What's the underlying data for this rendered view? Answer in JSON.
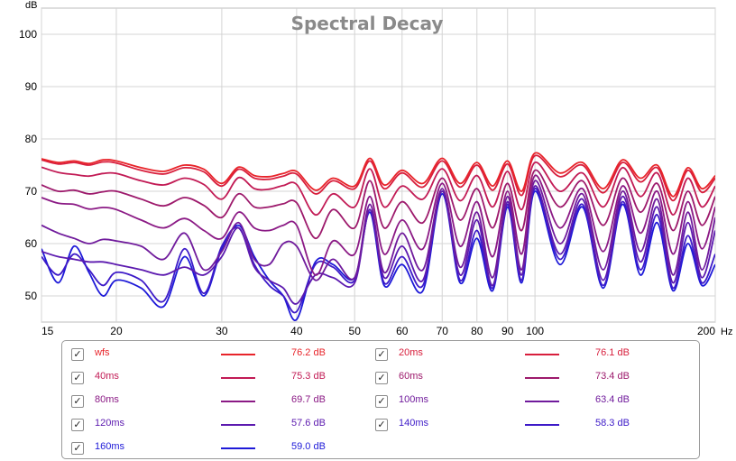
{
  "chart_data": {
    "type": "line",
    "title": "Spectral Decay",
    "ylabel": "dB",
    "xunit": "Hz",
    "xscale": "log",
    "xlim": [
      15,
      200
    ],
    "ylim": [
      45,
      105
    ],
    "xticks": [
      15,
      20,
      30,
      40,
      50,
      60,
      70,
      80,
      90,
      100,
      200
    ],
    "yticks": [
      50,
      60,
      70,
      80,
      90,
      100
    ],
    "grid": true,
    "x": [
      15,
      16,
      17,
      18,
      19,
      20,
      22,
      24,
      26,
      28,
      30,
      32,
      34,
      36,
      38,
      40,
      43,
      46,
      50,
      53,
      56,
      60,
      65,
      70,
      75,
      80,
      85,
      90,
      95,
      100,
      110,
      120,
      130,
      140,
      150,
      160,
      170,
      180,
      190,
      200
    ],
    "series": [
      {
        "name": "wfs",
        "label_value": "76.2 dB",
        "color": "#e8242a",
        "values": [
          76.2,
          75.5,
          75.8,
          75.3,
          76.0,
          75.8,
          74.5,
          73.8,
          75.0,
          74.2,
          71.5,
          74.6,
          73.0,
          72.8,
          73.4,
          73.8,
          70.2,
          72.5,
          71.0,
          76.3,
          71.2,
          74.0,
          71.5,
          76.3,
          71.5,
          75.5,
          71.0,
          75.8,
          70.0,
          77.3,
          73.5,
          75.5,
          70.5,
          76.0,
          72.5,
          75.0,
          69.0,
          74.5,
          70.5,
          73.0
        ]
      },
      {
        "name": "20ms",
        "label_value": "76.1 dB",
        "color": "#d81e3c",
        "values": [
          76.0,
          75.2,
          75.5,
          75.0,
          75.6,
          75.4,
          74.0,
          73.3,
          74.5,
          73.7,
          71.0,
          74.2,
          72.5,
          72.3,
          72.9,
          73.3,
          69.5,
          72.0,
          70.5,
          75.8,
          70.5,
          73.5,
          70.8,
          75.8,
          70.8,
          75.0,
          70.2,
          75.2,
          69.2,
          76.8,
          72.8,
          75.0,
          69.7,
          75.5,
          71.8,
          74.5,
          68.2,
          74.0,
          69.8,
          72.5
        ]
      },
      {
        "name": "40ms",
        "label_value": "75.3 dB",
        "color": "#c21b55",
        "values": [
          74.6,
          73.6,
          73.2,
          72.9,
          73.4,
          73.4,
          72.0,
          71.2,
          72.5,
          71.3,
          68.5,
          72.6,
          70.5,
          70.4,
          71.1,
          71.3,
          65.5,
          69.5,
          67.0,
          74.3,
          67.0,
          71.0,
          68.5,
          74.3,
          68.2,
          73.0,
          67.0,
          73.8,
          66.5,
          75.5,
          70.0,
          73.5,
          67.0,
          74.5,
          69.0,
          73.5,
          65.5,
          72.5,
          67.0,
          71.0
        ]
      },
      {
        "name": "60ms",
        "label_value": "73.4 dB",
        "color": "#9d1a6c",
        "values": [
          71.2,
          70.0,
          70.2,
          69.5,
          69.9,
          70.0,
          68.5,
          67.2,
          68.8,
          67.3,
          65.0,
          69.5,
          67.0,
          67.0,
          67.6,
          67.8,
          61.0,
          66.5,
          63.0,
          72.0,
          63.0,
          68.0,
          64.0,
          72.5,
          64.5,
          70.5,
          63.0,
          71.5,
          62.5,
          74.0,
          67.0,
          72.0,
          63.5,
          72.5,
          66.0,
          71.5,
          62.5,
          70.0,
          63.5,
          69.0
        ]
      },
      {
        "name": "80ms",
        "label_value": "69.7 dB",
        "color": "#8b1a85",
        "values": [
          68.8,
          67.7,
          67.5,
          66.6,
          66.9,
          66.5,
          64.5,
          63.0,
          64.8,
          62.5,
          61.0,
          66.0,
          63.0,
          62.5,
          63.5,
          63.5,
          54.0,
          60.5,
          58.0,
          69.0,
          58.0,
          64.5,
          59.0,
          71.5,
          59.5,
          68.0,
          57.5,
          70.0,
          58.0,
          73.0,
          63.0,
          70.5,
          58.5,
          71.0,
          62.0,
          70.0,
          58.0,
          68.0,
          59.0,
          67.0
        ]
      },
      {
        "name": "100ms",
        "label_value": "63.4 dB",
        "color": "#701b9c",
        "values": [
          63.5,
          62.0,
          61.0,
          60.0,
          60.8,
          60.5,
          59.5,
          57.0,
          62.0,
          55.0,
          58.5,
          64.0,
          57.0,
          56.0,
          60.0,
          59.5,
          53.0,
          57.0,
          53.5,
          67.5,
          54.5,
          62.0,
          55.0,
          70.5,
          55.5,
          66.0,
          53.5,
          69.0,
          55.0,
          72.0,
          60.0,
          69.5,
          55.0,
          70.0,
          58.5,
          68.5,
          54.0,
          66.0,
          55.0,
          65.0
        ]
      },
      {
        "name": "120ms",
        "label_value": "57.6 dB",
        "color": "#5c1aaf",
        "values": [
          58.5,
          57.5,
          57.0,
          56.5,
          56.5,
          56.0,
          55.0,
          54.0,
          55.5,
          54.0,
          57.5,
          63.0,
          55.5,
          53.0,
          51.5,
          48.5,
          54.0,
          53.5,
          52.5,
          66.5,
          53.5,
          59.5,
          53.0,
          70.0,
          54.0,
          64.5,
          52.0,
          68.0,
          54.0,
          71.0,
          58.0,
          68.5,
          53.0,
          69.0,
          56.5,
          67.0,
          52.5,
          64.0,
          53.5,
          62.5
        ]
      },
      {
        "name": "140ms",
        "label_value": "58.3 dB",
        "color": "#3d1ac8",
        "values": [
          57.5,
          54.0,
          58.0,
          55.0,
          52.0,
          54.5,
          53.0,
          49.0,
          59.0,
          50.5,
          59.5,
          63.0,
          56.0,
          52.0,
          50.0,
          47.0,
          56.0,
          55.5,
          53.0,
          66.5,
          52.5,
          57.5,
          52.0,
          70.0,
          53.0,
          62.5,
          51.5,
          67.5,
          53.0,
          70.5,
          57.0,
          67.5,
          52.0,
          68.0,
          55.0,
          65.5,
          51.5,
          61.5,
          52.5,
          58.0
        ]
      },
      {
        "name": "160ms",
        "label_value": "59.0 dB",
        "color": "#1e1ad8",
        "values": [
          59.0,
          52.5,
          59.5,
          54.5,
          50.0,
          53.0,
          51.5,
          48.0,
          57.5,
          50.0,
          59.0,
          63.5,
          57.5,
          53.0,
          50.0,
          45.5,
          56.5,
          56.0,
          53.5,
          66.0,
          52.0,
          56.0,
          51.0,
          69.5,
          52.5,
          61.0,
          51.0,
          67.0,
          52.5,
          70.0,
          56.0,
          67.0,
          51.5,
          67.5,
          54.0,
          64.0,
          51.0,
          60.0,
          52.0,
          56.0
        ]
      }
    ]
  }
}
